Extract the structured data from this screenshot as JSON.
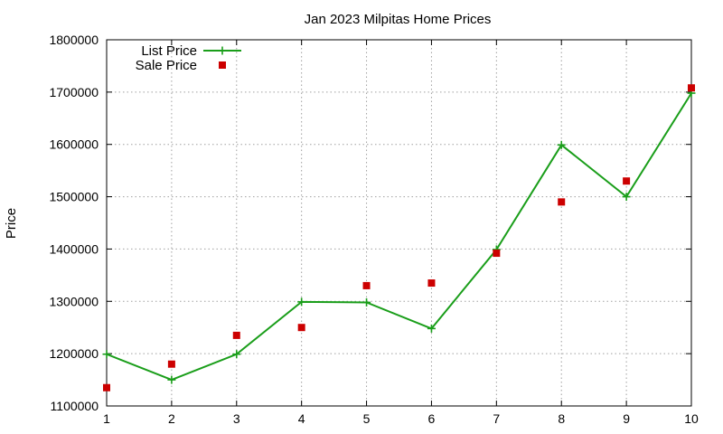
{
  "chart_data": {
    "type": "line",
    "title": "Jan 2023 Milpitas Home Prices",
    "xlabel": "",
    "ylabel": "Price",
    "xlim": [
      1,
      10
    ],
    "ylim": [
      1100000,
      1800000
    ],
    "x_ticks": [
      1,
      2,
      3,
      4,
      5,
      6,
      7,
      8,
      9,
      10
    ],
    "y_ticks": [
      1100000,
      1200000,
      1300000,
      1400000,
      1500000,
      1600000,
      1700000,
      1800000
    ],
    "grid": true,
    "legend_position": "top-left",
    "series": [
      {
        "name": "List Price",
        "style": "line-with-plus-markers",
        "color": "#1a9e1a",
        "x": [
          1,
          2,
          3,
          4,
          5,
          6,
          7,
          8,
          9,
          10
        ],
        "values": [
          1199000,
          1150000,
          1199000,
          1299000,
          1298000,
          1248000,
          1399000,
          1599000,
          1500000,
          1698000
        ]
      },
      {
        "name": "Sale Price",
        "style": "square-markers",
        "color": "#cc0000",
        "x": [
          1,
          2,
          3,
          4,
          5,
          6,
          7,
          8,
          9,
          10
        ],
        "values": [
          1135000,
          1180000,
          1235000,
          1250000,
          1330000,
          1335000,
          1392000,
          1490000,
          1530000,
          1708000
        ]
      }
    ]
  }
}
